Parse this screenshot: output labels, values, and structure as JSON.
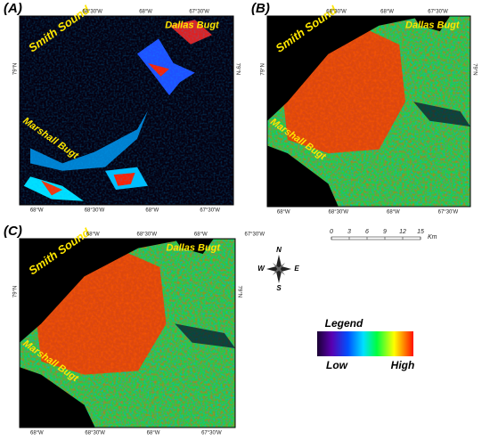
{
  "panels": [
    {
      "label": "(A)",
      "places": [
        "Smith Sound",
        "Dallas Bugt",
        "Marshall Bugt"
      ],
      "top_ticks": [
        "68°30'W",
        "68°W",
        "67°30'W"
      ],
      "bottom_ticks": [
        "68°W",
        "68°30'W",
        "68°W",
        "67°30'W"
      ],
      "lat": "79°N"
    },
    {
      "label": "(B)",
      "places": [
        "Smith Sound",
        "Dallas Bugt",
        "Marshall Bugt"
      ],
      "top_ticks": [
        "68°30'W",
        "68°W",
        "67°30'W"
      ],
      "bottom_ticks": [
        "68°W",
        "68°30'W",
        "68°W",
        "67°30'W"
      ],
      "lat": "79°N"
    },
    {
      "label": "(C)",
      "places": [
        "Smith Sound",
        "Dallas Bugt",
        "Marshall Bugt"
      ],
      "top_ticks": [
        "68°W",
        "68°30'W",
        "68°W",
        "67°30'W"
      ],
      "bottom_ticks": [
        "68°W",
        "68°30'W",
        "68°W",
        "67°30'W"
      ],
      "lat": "79°N"
    }
  ],
  "scale": {
    "ticks": [
      "0",
      "3",
      "6",
      "9",
      "12",
      "15"
    ],
    "unit": "Km"
  },
  "compass": {
    "n": "N",
    "s": "S",
    "e": "E",
    "w": "W"
  },
  "legend": {
    "title": "Legend",
    "low": "Low",
    "high": "High"
  }
}
